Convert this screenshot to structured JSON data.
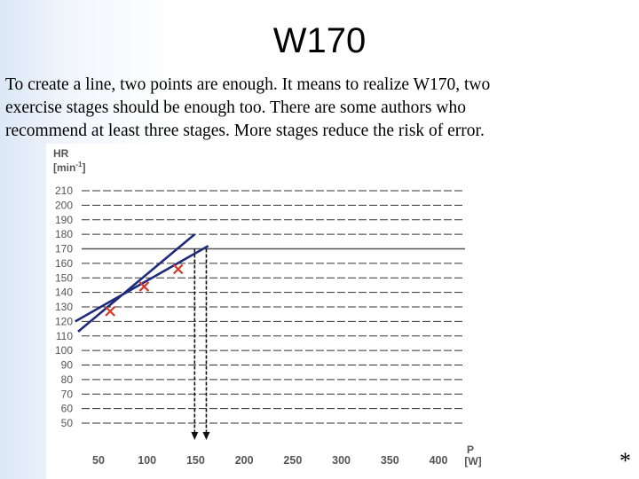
{
  "slide": {
    "title": "W170",
    "body_lines": [
      "To create a line, two points are enough. It means to realize W170, two",
      "exercise stages should be enough  too. There are some authors who",
      "recommend at least three stages.  More stages reduce the risk of error."
    ],
    "footer_mark": "*"
  },
  "chart_data": {
    "type": "line",
    "ylabel": "HR",
    "yunit": "[min-1]",
    "yunit_parts": {
      "main": "[min",
      "sup": "-1",
      "close": "]"
    },
    "xlabel": "P",
    "xunit": "[W]",
    "xlim": [
      30,
      430
    ],
    "ylim": [
      40,
      215
    ],
    "yticks": [
      210,
      200,
      190,
      180,
      170,
      160,
      150,
      140,
      130,
      120,
      110,
      100,
      90,
      80,
      70,
      60,
      50
    ],
    "xticks": [
      50,
      100,
      150,
      200,
      250,
      300,
      350,
      400
    ],
    "grid": true,
    "reference_line_y": 170,
    "measured_points": [
      {
        "x": 62,
        "y": 127
      },
      {
        "x": 97,
        "y": 144
      },
      {
        "x": 132,
        "y": 156
      }
    ],
    "series": [
      {
        "values_x": [
          26,
          163
        ],
        "values_y": [
          120,
          172
        ],
        "color": "#1f2b7a"
      },
      {
        "values_x": [
          29,
          149
        ],
        "values_y": [
          113,
          180
        ],
        "color": "#1f2b7a"
      }
    ],
    "drop_lines_x": [
      149,
      161
    ],
    "colors": {
      "fit_line": "#1f2b7a",
      "points": "#d63a2a",
      "grid": "#333333",
      "axis_text": "#555555"
    }
  }
}
